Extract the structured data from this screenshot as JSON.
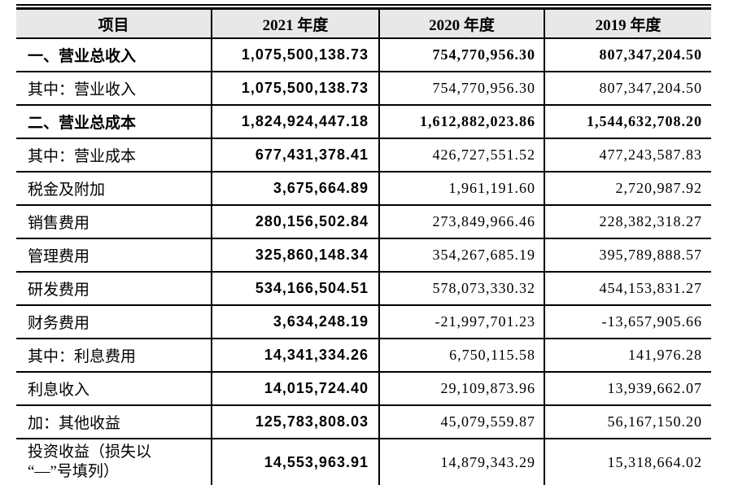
{
  "table": {
    "header": {
      "item": "项目",
      "y2021": "2021 年度",
      "y2020": "2020 年度",
      "y2019": "2019 年度"
    },
    "style": {
      "header_bg": "#e8e8e8",
      "border_color": "#000000",
      "text_color": "#000000",
      "page_bg": "#ffffff"
    },
    "rows": [
      {
        "label": "一、营业总收入",
        "v2021": "1,075,500,138.73",
        "v2020": "754,770,956.30",
        "v2019": "807,347,204.50"
      },
      {
        "label": "其中：营业收入",
        "v2021": "1,075,500,138.73",
        "v2020": "754,770,956.30",
        "v2019": "807,347,204.50"
      },
      {
        "label": "二、营业总成本",
        "v2021": "1,824,924,447.18",
        "v2020": "1,612,882,023.86",
        "v2019": "1,544,632,708.20"
      },
      {
        "label": "其中：营业成本",
        "v2021": "677,431,378.41",
        "v2020": "426,727,551.52",
        "v2019": "477,243,587.83"
      },
      {
        "label": "税金及附加",
        "v2021": "3,675,664.89",
        "v2020": "1,961,191.60",
        "v2019": "2,720,987.92"
      },
      {
        "label": "销售费用",
        "v2021": "280,156,502.84",
        "v2020": "273,849,966.46",
        "v2019": "228,382,318.27"
      },
      {
        "label": "管理费用",
        "v2021": "325,860,148.34",
        "v2020": "354,267,685.19",
        "v2019": "395,789,888.57"
      },
      {
        "label": "研发费用",
        "v2021": "534,166,504.51",
        "v2020": "578,073,330.32",
        "v2019": "454,153,831.27"
      },
      {
        "label": "财务费用",
        "v2021": "3,634,248.19",
        "v2020": "-21,997,701.23",
        "v2019": "-13,657,905.66"
      },
      {
        "label": "其中：利息费用",
        "v2021": "14,341,334.26",
        "v2020": "6,750,115.58",
        "v2019": "141,976.28"
      },
      {
        "label": "利息收入",
        "v2021": "14,015,724.40",
        "v2020": "29,109,873.96",
        "v2019": "13,939,662.07"
      },
      {
        "label": "加：其他收益",
        "v2021": "125,783,808.03",
        "v2020": "45,079,559.87",
        "v2019": "56,167,150.20"
      },
      {
        "label": "投资收益（损失以\n“—”号填列）",
        "v2021": "14,553,963.91",
        "v2020": "14,879,343.29",
        "v2019": "15,318,664.02"
      }
    ]
  }
}
